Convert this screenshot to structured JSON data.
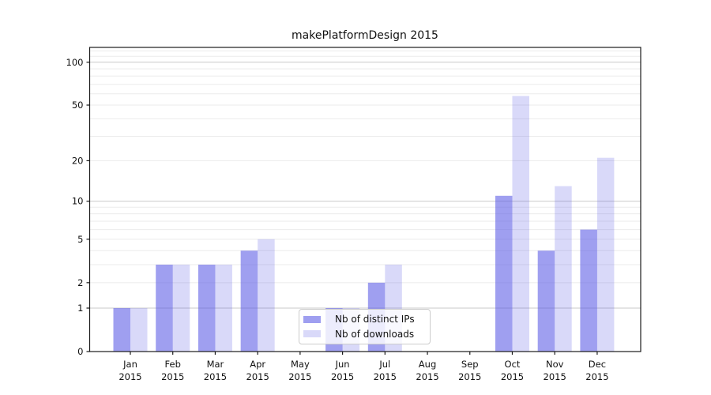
{
  "title": "makePlatformDesign 2015",
  "legend": {
    "items": [
      {
        "label": "Nb of distinct IPs",
        "swatch_rgba": "rgba(90,90,230,0.58)"
      },
      {
        "label": "Nb of downloads",
        "swatch_rgba": "rgba(90,90,230,0.23)"
      }
    ]
  },
  "chart_data": {
    "type": "bar",
    "title": "makePlatformDesign 2015",
    "categories": [
      "Jan",
      "Feb",
      "Mar",
      "Apr",
      "May",
      "Jun",
      "Jul",
      "Aug",
      "Sep",
      "Oct",
      "Nov",
      "Dec"
    ],
    "x_year_label": "2015",
    "series": [
      {
        "name": "Nb of distinct IPs",
        "color_over_white": "#a1a1f0",
        "rgba": "rgba(90,90,230,0.58)",
        "values": [
          1,
          3,
          3,
          4,
          0,
          1,
          2,
          0,
          0,
          11,
          4,
          6
        ]
      },
      {
        "name": "Nb of downloads",
        "color_over_white": "#d9d9f8",
        "rgba": "rgba(90,90,230,0.23)",
        "values": [
          1,
          3,
          3,
          5,
          0,
          1,
          3,
          0,
          0,
          58,
          13,
          21
        ]
      }
    ],
    "yscale": "log1p",
    "ylim": [
      0,
      127
    ],
    "yticks": [
      0,
      1,
      2,
      5,
      10,
      20,
      50,
      100
    ],
    "ytick_labels": [
      "0",
      "1",
      "2",
      "5",
      "10",
      "20",
      "50",
      "100"
    ],
    "grid": {
      "on": true,
      "major": [
        1,
        10,
        100
      ],
      "minor": [
        2,
        3,
        4,
        5,
        6,
        7,
        8,
        9,
        20,
        30,
        40,
        50,
        60,
        70,
        80,
        90,
        110,
        120
      ],
      "color_major": "#c9c9c9",
      "color_minor": "#ebebeb"
    },
    "legend_position": "inside lower-center-left",
    "spine_color": "#1a1a1a"
  }
}
